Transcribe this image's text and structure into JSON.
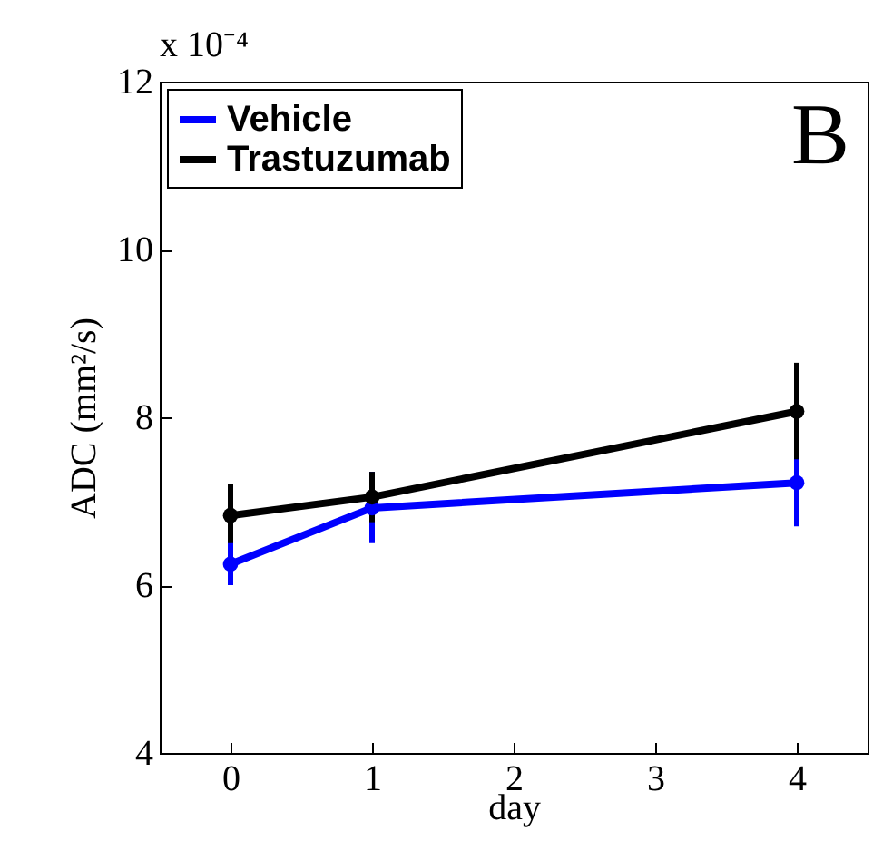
{
  "chart_data": {
    "type": "line",
    "xlabel": "day",
    "ylabel": "ADC (mm²/s)",
    "annotations": [
      "x 10⁻⁴",
      "B"
    ],
    "x": [
      0,
      1,
      4
    ],
    "xlim": [
      -0.5,
      4.5
    ],
    "xticks": [
      0,
      1,
      2,
      3,
      4
    ],
    "ylim": [
      4,
      12
    ],
    "yticks": [
      4,
      6,
      8,
      10,
      12
    ],
    "series": [
      {
        "name": "Vehicle",
        "color": "#0000ff",
        "values": [
          6.25,
          6.92,
          7.22
        ],
        "errors": [
          [
            6.0,
            6.55
          ],
          [
            6.5,
            7.35
          ],
          [
            6.7,
            7.75
          ]
        ]
      },
      {
        "name": "Trastuzumab",
        "color": "#000000",
        "values": [
          6.83,
          7.05,
          8.07
        ],
        "errors": [
          [
            6.5,
            7.2
          ],
          [
            6.75,
            7.35
          ],
          [
            7.5,
            8.65
          ]
        ]
      }
    ],
    "legend": "top left",
    "marker": "circle",
    "line_style": "solid",
    "grid": false
  }
}
